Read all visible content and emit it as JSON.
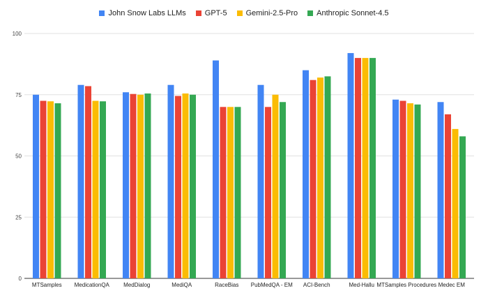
{
  "chart_data": {
    "type": "bar",
    "title": "",
    "xlabel": "",
    "ylabel": "",
    "ylim": [
      0,
      100
    ],
    "yticks": [
      "0",
      "25",
      "50",
      "75",
      "100"
    ],
    "grid": true,
    "legend_position": "top",
    "categories": [
      "MTSamples",
      "MedicationQA",
      "MedDialog",
      "MediQA",
      "RaceBias",
      "PubMedQA - EM",
      "ACI-Bench",
      "Med-Hallu",
      "MTSamples Procedures",
      "Medec EM"
    ],
    "series": [
      {
        "name": "John Snow Labs LLMs",
        "color": "#4285F4",
        "values": [
          75,
          79,
          76,
          79,
          89,
          79,
          85,
          92,
          73,
          72
        ]
      },
      {
        "name": "GPT-5",
        "color": "#EA4335",
        "values": [
          72.5,
          78.5,
          75.3,
          74.5,
          70,
          70,
          81,
          90,
          72.5,
          67
        ]
      },
      {
        "name": "Gemini-2.5-Pro",
        "color": "#FBBC04",
        "values": [
          72.3,
          72.5,
          75,
          75.5,
          70,
          75,
          82,
          90,
          71.5,
          61
        ]
      },
      {
        "name": "Anthropic Sonnet-4.5",
        "color": "#34A853",
        "values": [
          71.5,
          72.3,
          75.5,
          75,
          70,
          72,
          82.5,
          90,
          71,
          58
        ]
      }
    ]
  }
}
